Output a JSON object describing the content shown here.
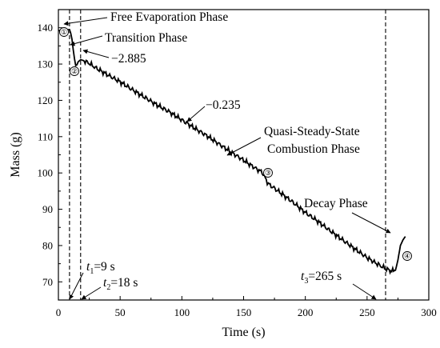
{
  "chart_data": {
    "type": "line",
    "xlabel": "Time (s)",
    "ylabel": "Mass (g)",
    "xlim": [
      0,
      300
    ],
    "ylim": [
      65,
      145
    ],
    "xticks": [
      0,
      50,
      100,
      150,
      200,
      250,
      300
    ],
    "yticks": [
      70,
      80,
      90,
      100,
      110,
      120,
      130,
      140
    ],
    "grid": false,
    "series": [
      {
        "x": [
          0,
          3,
          6,
          9,
          10,
          11,
          12,
          13,
          14,
          15,
          16,
          18,
          20,
          25,
          30,
          40,
          50,
          60,
          70,
          80,
          90,
          100,
          110,
          120,
          130,
          140,
          150,
          160,
          165,
          170,
          180,
          190,
          200,
          210,
          220,
          230,
          240,
          250,
          255,
          260,
          265,
          268,
          270,
          273,
          275,
          277,
          279,
          281
        ],
        "values": [
          139.2,
          139.3,
          139.4,
          139.5,
          138.5,
          136.8,
          134.0,
          131.5,
          129.6,
          129.8,
          130.6,
          131.2,
          131.0,
          130.2,
          129.0,
          127.0,
          125.1,
          122.9,
          120.8,
          118.7,
          116.8,
          114.6,
          112.4,
          110.3,
          108.0,
          105.7,
          103.5,
          101.2,
          100.2,
          97.0,
          94.5,
          91.9,
          89.1,
          86.7,
          84.1,
          81.6,
          79.1,
          76.7,
          75.6,
          74.6,
          73.6,
          73.2,
          73.0,
          73.2,
          76.0,
          80.0,
          81.5,
          82.5
        ]
      }
    ],
    "vlines": [
      9,
      18,
      265
    ],
    "annotations": {
      "free_evaporation": "Free Evaporation Phase",
      "transition": "Transition Phase",
      "slope_transition": "−2.885",
      "slope_steady": "−0.235",
      "steady_line1": "Quasi-Steady-State",
      "steady_line2": "Combustion Phase",
      "decay": "Decay Phase",
      "phase_markers": [
        "①",
        "②",
        "③",
        "④"
      ],
      "t1": {
        "var": "t",
        "sub": "1",
        "val": "=9 s"
      },
      "t2": {
        "var": "t",
        "sub": "2",
        "val": "=18 s"
      },
      "t3": {
        "var": "t",
        "sub": "3",
        "val": "=265 s"
      }
    }
  }
}
